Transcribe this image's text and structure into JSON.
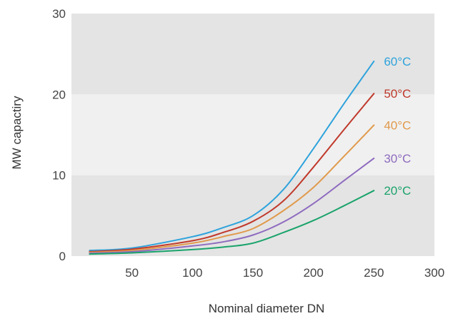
{
  "chart_data": {
    "type": "line",
    "xlabel": "Nominal diameter DN",
    "ylabel": "MW capactiry",
    "xlim": [
      0,
      300
    ],
    "ylim": [
      0,
      30
    ],
    "xticks": [
      50,
      100,
      150,
      200,
      250,
      300
    ],
    "yticks": [
      0,
      10,
      20,
      30
    ],
    "bands": [
      {
        "from": 0,
        "to": 10,
        "color": "#e4e4e4"
      },
      {
        "from": 10,
        "to": 20,
        "color": "#f0f0f0"
      },
      {
        "from": 20,
        "to": 30,
        "color": "#e4e4e4"
      }
    ],
    "grid": false,
    "legend": "inline-right",
    "series": [
      {
        "name": "60°C",
        "color": "#2ea3dc",
        "x": [
          15,
          50,
          100,
          125,
          150,
          175,
          200,
          225,
          250
        ],
        "y": [
          0.7,
          1.0,
          2.4,
          3.5,
          5.0,
          8.2,
          13.3,
          18.8,
          24.1
        ]
      },
      {
        "name": "50°C",
        "color": "#c0392b",
        "x": [
          15,
          50,
          100,
          125,
          150,
          175,
          200,
          225,
          250
        ],
        "y": [
          0.55,
          0.85,
          1.9,
          2.9,
          4.3,
          6.8,
          11.0,
          15.6,
          20.1
        ]
      },
      {
        "name": "40°C",
        "color": "#e09a4c",
        "x": [
          15,
          50,
          100,
          125,
          150,
          175,
          200,
          225,
          250
        ],
        "y": [
          0.45,
          0.7,
          1.6,
          2.4,
          3.4,
          5.6,
          8.5,
          12.3,
          16.2
        ]
      },
      {
        "name": "30°C",
        "color": "#8e6bbf",
        "x": [
          15,
          50,
          100,
          125,
          150,
          175,
          200,
          225,
          250
        ],
        "y": [
          0.35,
          0.55,
          1.25,
          1.75,
          2.6,
          4.2,
          6.5,
          9.3,
          12.1
        ]
      },
      {
        "name": "20°C",
        "color": "#1aa36b",
        "x": [
          15,
          50,
          100,
          125,
          150,
          175,
          200,
          225,
          250
        ],
        "y": [
          0.25,
          0.4,
          0.8,
          1.1,
          1.6,
          2.9,
          4.4,
          6.2,
          8.1
        ]
      }
    ]
  }
}
